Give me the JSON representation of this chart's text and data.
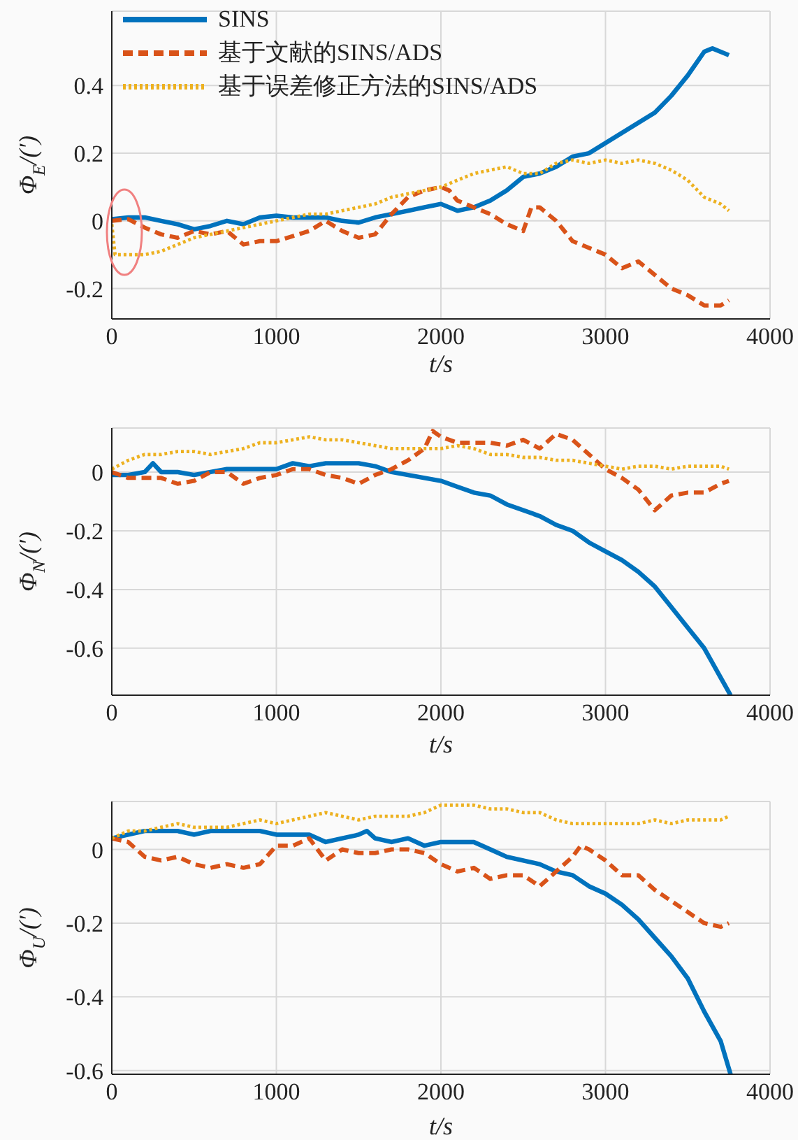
{
  "chart_data": [
    {
      "type": "line",
      "xlabel": "t/s",
      "ylabel": "Φ$_{E}$/(′)",
      "xlim": [
        0,
        4000
      ],
      "xticks": [
        0,
        1000,
        2000,
        3000,
        4000
      ],
      "ylim": [
        -0.29,
        0.62
      ],
      "yticks": [
        -0.2,
        0,
        0.2,
        0.4
      ],
      "grid": true,
      "legend": "top left",
      "series": [
        {
          "name": "SINS",
          "color": "#0072bd",
          "line_style": "solid",
          "x": [
            0,
            100,
            200,
            300,
            400,
            500,
            600,
            700,
            800,
            900,
            1000,
            1100,
            1200,
            1300,
            1400,
            1500,
            1600,
            1700,
            1800,
            1900,
            2000,
            2100,
            2200,
            2300,
            2400,
            2500,
            2600,
            2700,
            2800,
            2900,
            3000,
            3100,
            3200,
            3300,
            3400,
            3500,
            3600,
            3650,
            3750
          ],
          "values": [
            0.005,
            0.01,
            0.01,
            0.0,
            -0.01,
            -0.025,
            -0.015,
            0.0,
            -0.01,
            0.01,
            0.015,
            0.01,
            0.01,
            0.01,
            0.0,
            -0.005,
            0.01,
            0.02,
            0.03,
            0.04,
            0.05,
            0.03,
            0.04,
            0.06,
            0.09,
            0.13,
            0.14,
            0.16,
            0.19,
            0.2,
            0.23,
            0.26,
            0.29,
            0.32,
            0.37,
            0.43,
            0.5,
            0.51,
            0.49
          ]
        },
        {
          "name": "基于文献的SINS/ADS",
          "color": "#d95319",
          "line_style": "dashed",
          "x": [
            0,
            100,
            200,
            300,
            400,
            500,
            600,
            700,
            800,
            900,
            1000,
            1100,
            1200,
            1300,
            1400,
            1500,
            1600,
            1700,
            1800,
            1900,
            2000,
            2050,
            2100,
            2200,
            2300,
            2400,
            2500,
            2550,
            2600,
            2700,
            2800,
            2900,
            3000,
            3100,
            3200,
            3300,
            3400,
            3500,
            3600,
            3700,
            3750
          ],
          "values": [
            0.0,
            0.005,
            -0.02,
            -0.04,
            -0.05,
            -0.03,
            -0.04,
            -0.03,
            -0.07,
            -0.06,
            -0.06,
            -0.045,
            -0.03,
            0.0,
            -0.03,
            -0.05,
            -0.04,
            0.02,
            0.07,
            0.09,
            0.1,
            0.09,
            0.06,
            0.04,
            0.02,
            -0.01,
            -0.03,
            0.04,
            0.04,
            0.0,
            -0.06,
            -0.08,
            -0.1,
            -0.14,
            -0.12,
            -0.16,
            -0.2,
            -0.22,
            -0.25,
            -0.25,
            -0.235
          ]
        },
        {
          "name": "基于误差修正方法的SINS/ADS",
          "color": "#edb120",
          "line_style": "dotted",
          "x": [
            0,
            20,
            100,
            200,
            300,
            400,
            500,
            600,
            700,
            800,
            900,
            1000,
            1100,
            1200,
            1300,
            1400,
            1500,
            1600,
            1700,
            1800,
            1900,
            2000,
            2100,
            2200,
            2300,
            2400,
            2500,
            2600,
            2700,
            2800,
            2900,
            3000,
            3100,
            3200,
            3300,
            3400,
            3500,
            3600,
            3700,
            3750
          ],
          "values": [
            -0.01,
            -0.1,
            -0.1,
            -0.1,
            -0.09,
            -0.07,
            -0.05,
            -0.04,
            -0.03,
            -0.02,
            -0.01,
            0.0,
            0.01,
            0.02,
            0.02,
            0.03,
            0.04,
            0.05,
            0.07,
            0.08,
            0.09,
            0.1,
            0.12,
            0.14,
            0.15,
            0.16,
            0.14,
            0.14,
            0.17,
            0.18,
            0.17,
            0.18,
            0.17,
            0.18,
            0.17,
            0.15,
            0.12,
            0.07,
            0.05,
            0.03
          ]
        }
      ]
    },
    {
      "type": "line",
      "xlabel": "t/s",
      "ylabel": "Φ$_{N}$/(′)",
      "xlim": [
        0,
        4000
      ],
      "xticks": [
        0,
        1000,
        2000,
        3000,
        4000
      ],
      "ylim": [
        -0.76,
        0.15
      ],
      "yticks": [
        -0.6,
        -0.4,
        -0.2,
        0
      ],
      "grid": true,
      "series": [
        {
          "color": "#0072bd",
          "line_style": "solid",
          "x": [
            0,
            100,
            200,
            250,
            300,
            400,
            500,
            600,
            700,
            800,
            900,
            1000,
            1100,
            1200,
            1300,
            1400,
            1500,
            1600,
            1700,
            1800,
            1900,
            2000,
            2100,
            2200,
            2300,
            2400,
            2500,
            2600,
            2700,
            2800,
            2900,
            3000,
            3100,
            3200,
            3300,
            3400,
            3500,
            3600,
            3700,
            3760
          ],
          "values": [
            -0.01,
            -0.01,
            0.0,
            0.03,
            0.0,
            0.0,
            -0.01,
            0.0,
            0.01,
            0.01,
            0.01,
            0.01,
            0.03,
            0.02,
            0.03,
            0.03,
            0.03,
            0.02,
            0.0,
            -0.01,
            -0.02,
            -0.03,
            -0.05,
            -0.07,
            -0.08,
            -0.11,
            -0.13,
            -0.15,
            -0.18,
            -0.2,
            -0.24,
            -0.27,
            -0.3,
            -0.34,
            -0.39,
            -0.46,
            -0.53,
            -0.6,
            -0.7,
            -0.76
          ]
        },
        {
          "color": "#d95319",
          "line_style": "dashed",
          "x": [
            0,
            100,
            200,
            300,
            400,
            500,
            600,
            700,
            800,
            900,
            1000,
            1100,
            1200,
            1300,
            1400,
            1500,
            1600,
            1700,
            1800,
            1900,
            1950,
            2000,
            2100,
            2200,
            2300,
            2400,
            2500,
            2600,
            2700,
            2800,
            2900,
            3000,
            3100,
            3200,
            3300,
            3400,
            3500,
            3600,
            3700,
            3750
          ],
          "values": [
            0.0,
            -0.02,
            -0.02,
            -0.02,
            -0.04,
            -0.03,
            0.0,
            0.0,
            -0.04,
            -0.02,
            -0.01,
            0.01,
            0.01,
            -0.01,
            -0.02,
            -0.04,
            -0.01,
            0.01,
            0.04,
            0.08,
            0.14,
            0.12,
            0.1,
            0.1,
            0.1,
            0.09,
            0.11,
            0.08,
            0.13,
            0.11,
            0.06,
            0.01,
            -0.02,
            -0.06,
            -0.13,
            -0.08,
            -0.07,
            -0.07,
            -0.04,
            -0.03
          ]
        },
        {
          "color": "#edb120",
          "line_style": "dotted",
          "x": [
            0,
            100,
            200,
            300,
            400,
            500,
            600,
            700,
            800,
            900,
            1000,
            1100,
            1200,
            1300,
            1400,
            1500,
            1600,
            1700,
            1800,
            1900,
            2000,
            2100,
            2200,
            2300,
            2400,
            2500,
            2600,
            2700,
            2800,
            2900,
            3000,
            3100,
            3200,
            3300,
            3400,
            3500,
            3600,
            3700,
            3750
          ],
          "values": [
            0.01,
            0.04,
            0.06,
            0.06,
            0.07,
            0.07,
            0.06,
            0.07,
            0.08,
            0.1,
            0.1,
            0.11,
            0.12,
            0.11,
            0.11,
            0.1,
            0.09,
            0.08,
            0.08,
            0.08,
            0.08,
            0.09,
            0.08,
            0.06,
            0.06,
            0.05,
            0.05,
            0.04,
            0.04,
            0.03,
            0.02,
            0.01,
            0.02,
            0.02,
            0.01,
            0.02,
            0.02,
            0.02,
            0.01
          ]
        }
      ]
    },
    {
      "type": "line",
      "xlabel": "t/s",
      "ylabel": "Φ$_{U}$/(′)",
      "xlim": [
        0,
        4000
      ],
      "xticks": [
        0,
        1000,
        2000,
        3000,
        4000
      ],
      "ylim": [
        -0.61,
        0.13
      ],
      "yticks": [
        -0.6,
        -0.4,
        -0.2,
        0
      ],
      "grid": true,
      "series": [
        {
          "color": "#0072bd",
          "line_style": "solid",
          "x": [
            0,
            100,
            200,
            300,
            400,
            500,
            600,
            700,
            800,
            900,
            1000,
            1100,
            1200,
            1300,
            1400,
            1500,
            1550,
            1600,
            1700,
            1800,
            1900,
            2000,
            2100,
            2200,
            2300,
            2400,
            2500,
            2600,
            2700,
            2800,
            2900,
            3000,
            3100,
            3200,
            3300,
            3400,
            3500,
            3600,
            3700,
            3760
          ],
          "values": [
            0.03,
            0.04,
            0.05,
            0.05,
            0.05,
            0.04,
            0.05,
            0.05,
            0.05,
            0.05,
            0.04,
            0.04,
            0.04,
            0.02,
            0.03,
            0.04,
            0.05,
            0.03,
            0.02,
            0.03,
            0.01,
            0.02,
            0.02,
            0.02,
            0.0,
            -0.02,
            -0.03,
            -0.04,
            -0.06,
            -0.07,
            -0.1,
            -0.12,
            -0.15,
            -0.19,
            -0.24,
            -0.29,
            -0.35,
            -0.44,
            -0.52,
            -0.61
          ]
        },
        {
          "color": "#d95319",
          "line_style": "dashed",
          "x": [
            0,
            100,
            200,
            300,
            400,
            500,
            600,
            700,
            800,
            900,
            1000,
            1100,
            1200,
            1300,
            1400,
            1500,
            1600,
            1700,
            1800,
            1900,
            2000,
            2100,
            2200,
            2300,
            2400,
            2500,
            2600,
            2700,
            2800,
            2850,
            2900,
            3000,
            3100,
            3200,
            3300,
            3400,
            3500,
            3600,
            3700,
            3750
          ],
          "values": [
            0.03,
            0.02,
            -0.02,
            -0.03,
            -0.02,
            -0.04,
            -0.05,
            -0.04,
            -0.05,
            -0.04,
            0.01,
            0.01,
            0.03,
            -0.03,
            0.0,
            -0.01,
            -0.01,
            0.0,
            0.0,
            -0.01,
            -0.04,
            -0.06,
            -0.05,
            -0.08,
            -0.07,
            -0.07,
            -0.1,
            -0.06,
            -0.02,
            0.01,
            0.0,
            -0.03,
            -0.07,
            -0.07,
            -0.11,
            -0.14,
            -0.17,
            -0.2,
            -0.21,
            -0.2
          ]
        },
        {
          "color": "#edb120",
          "line_style": "dotted",
          "x": [
            0,
            100,
            200,
            300,
            400,
            500,
            600,
            700,
            800,
            900,
            1000,
            1100,
            1200,
            1300,
            1400,
            1500,
            1600,
            1700,
            1800,
            1900,
            2000,
            2100,
            2200,
            2300,
            2400,
            2500,
            2600,
            2700,
            2800,
            2900,
            3000,
            3100,
            3200,
            3300,
            3400,
            3500,
            3600,
            3700,
            3750
          ],
          "values": [
            0.03,
            0.05,
            0.05,
            0.06,
            0.07,
            0.06,
            0.06,
            0.06,
            0.07,
            0.08,
            0.07,
            0.08,
            0.09,
            0.1,
            0.09,
            0.08,
            0.09,
            0.09,
            0.09,
            0.1,
            0.12,
            0.12,
            0.12,
            0.11,
            0.11,
            0.1,
            0.1,
            0.08,
            0.07,
            0.07,
            0.07,
            0.07,
            0.07,
            0.08,
            0.07,
            0.08,
            0.08,
            0.08,
            0.09
          ]
        }
      ]
    }
  ]
}
